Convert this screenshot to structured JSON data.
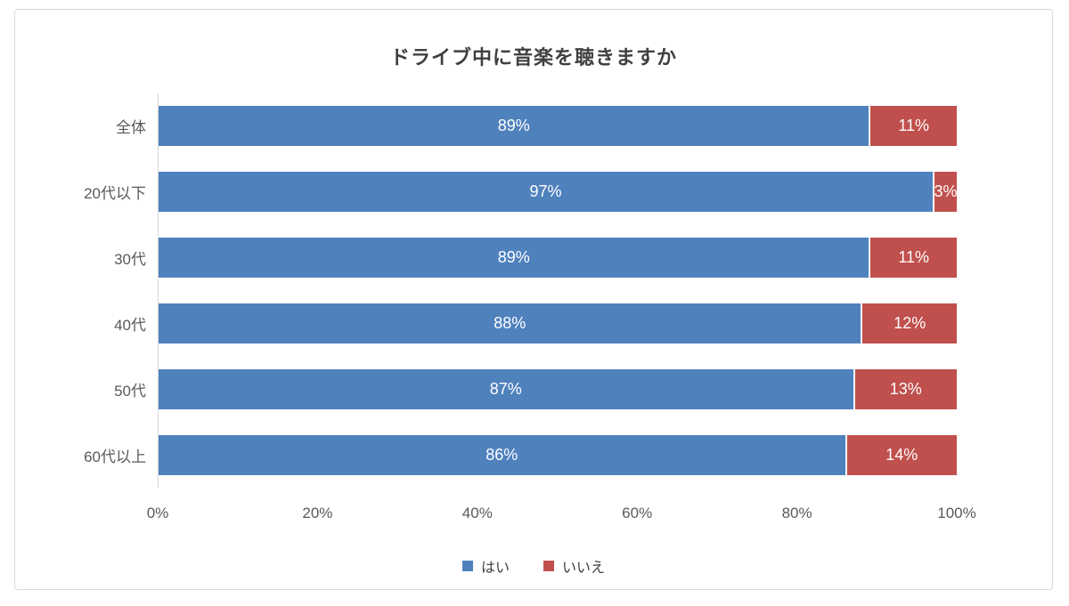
{
  "window": {
    "background": "#ffffff",
    "frame_border_color": "#d9d9d9"
  },
  "chart_data": {
    "type": "bar",
    "orientation": "horizontal",
    "stacked": true,
    "title": "ドライブ中に音楽を聴きますか",
    "categories": [
      "全体",
      "20代以下",
      "30代",
      "40代",
      "50代",
      "60代以上"
    ],
    "series": [
      {
        "name": "はい",
        "color": "#4F81BD",
        "values": [
          89,
          97,
          89,
          88,
          87,
          86
        ],
        "labels": [
          "89%",
          "97%",
          "89%",
          "88%",
          "87%",
          "86%"
        ]
      },
      {
        "name": "いいえ",
        "color": "#C0504D",
        "values": [
          11,
          3,
          11,
          12,
          13,
          14
        ],
        "labels": [
          "11%",
          "3%",
          "11%",
          "12%",
          "13%",
          "14%"
        ]
      }
    ],
    "x_axis": {
      "ticks": [
        "0%",
        "20%",
        "40%",
        "60%",
        "80%",
        "100%"
      ],
      "range": [
        0,
        100
      ],
      "tick_step": 20
    },
    "data_label_color": "#ffffff",
    "legend_position": "bottom",
    "grid": false,
    "axis_line_color": "#d9d9d9",
    "text_colors": {
      "title": "#404040",
      "category": "#595959",
      "tick": "#595959",
      "legend": "#404040"
    }
  }
}
